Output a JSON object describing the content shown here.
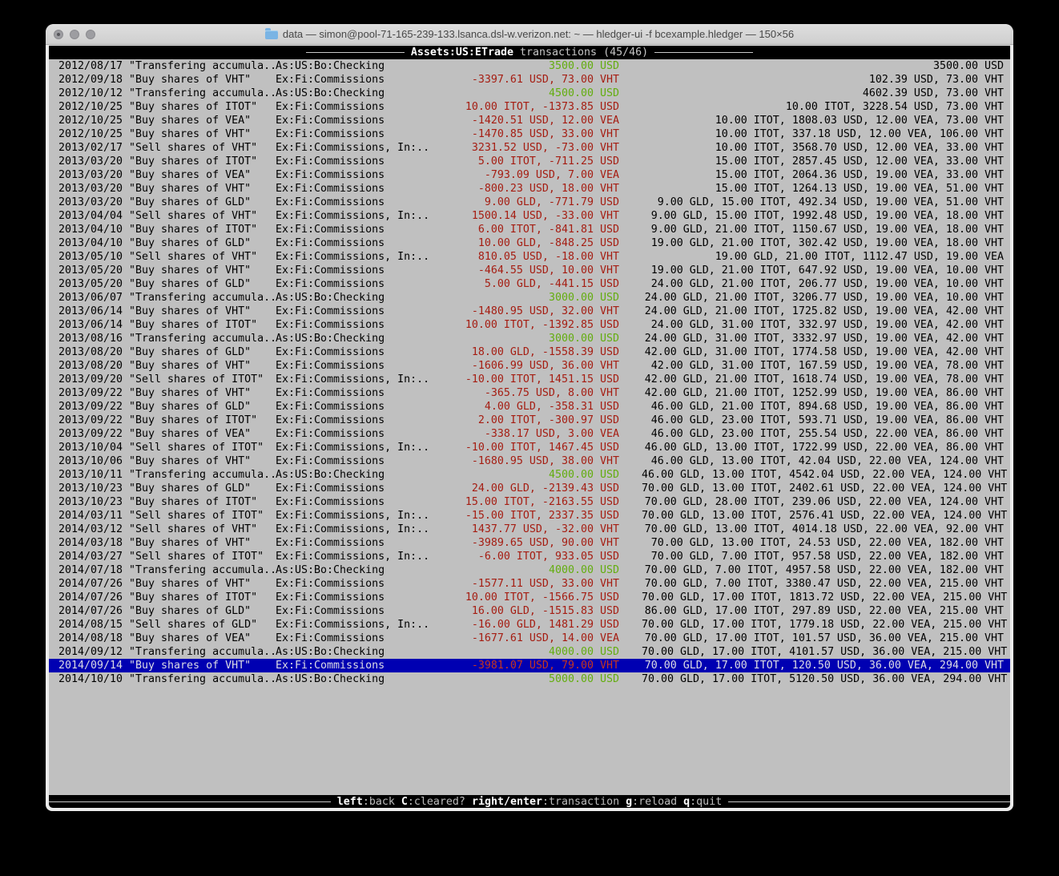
{
  "window": {
    "title": "data — simon@pool-71-165-239-133.lsanca.dsl-w.verizon.net: ~ — hledger-ui -f bcexample.hledger — 150×56"
  },
  "header": {
    "account": "Assets:US:ETrade",
    "mode_label": "transactions",
    "position": "(45/46)"
  },
  "footer": {
    "keys": [
      {
        "key": "left",
        "label": ":back"
      },
      {
        "key": "C",
        "label": ":cleared?"
      },
      {
        "key": "right/enter",
        "label": ":transaction"
      },
      {
        "key": "g",
        "label": ":reload"
      },
      {
        "key": "q",
        "label": ":quit"
      }
    ]
  },
  "colors": {
    "terminal_bg": "#c0c0c0",
    "bar_bg": "#000000",
    "negative_amount": "#a51d12",
    "positive_amount": "#63ad0f",
    "selection_bg": "#0000b2",
    "selection_text": "#dcdce4"
  },
  "transactions": [
    {
      "date": "2012/08/17",
      "description": "\"Transfering accumula..",
      "account": "As:US:Bo:Checking",
      "amount": "3500.00 USD",
      "amount_color": "green",
      "balance": "3500.00 USD",
      "selected": false
    },
    {
      "date": "2012/09/18",
      "description": "\"Buy shares of VHT\"",
      "account": "Ex:Fi:Commissions",
      "amount": "-3397.61 USD, 73.00 VHT",
      "amount_color": "red",
      "balance": "102.39 USD, 73.00 VHT",
      "selected": false
    },
    {
      "date": "2012/10/12",
      "description": "\"Transfering accumula..",
      "account": "As:US:Bo:Checking",
      "amount": "4500.00 USD",
      "amount_color": "green",
      "balance": "4602.39 USD, 73.00 VHT",
      "selected": false
    },
    {
      "date": "2012/10/25",
      "description": "\"Buy shares of ITOT\"",
      "account": "Ex:Fi:Commissions",
      "amount": "10.00 ITOT, -1373.85 USD",
      "amount_color": "red",
      "balance": "10.00 ITOT, 3228.54 USD, 73.00 VHT",
      "selected": false
    },
    {
      "date": "2012/10/25",
      "description": "\"Buy shares of VEA\"",
      "account": "Ex:Fi:Commissions",
      "amount": "-1420.51 USD, 12.00 VEA",
      "amount_color": "red",
      "balance": "10.00 ITOT, 1808.03 USD, 12.00 VEA, 73.00 VHT",
      "selected": false
    },
    {
      "date": "2012/10/25",
      "description": "\"Buy shares of VHT\"",
      "account": "Ex:Fi:Commissions",
      "amount": "-1470.85 USD, 33.00 VHT",
      "amount_color": "red",
      "balance": "10.00 ITOT, 337.18 USD, 12.00 VEA, 106.00 VHT",
      "selected": false
    },
    {
      "date": "2013/02/17",
      "description": "\"Sell shares of VHT\"",
      "account": "Ex:Fi:Commissions, In:..",
      "amount": "3231.52 USD, -73.00 VHT",
      "amount_color": "red",
      "balance": "10.00 ITOT, 3568.70 USD, 12.00 VEA, 33.00 VHT",
      "selected": false
    },
    {
      "date": "2013/03/20",
      "description": "\"Buy shares of ITOT\"",
      "account": "Ex:Fi:Commissions",
      "amount": "5.00 ITOT, -711.25 USD",
      "amount_color": "red",
      "balance": "15.00 ITOT, 2857.45 USD, 12.00 VEA, 33.00 VHT",
      "selected": false
    },
    {
      "date": "2013/03/20",
      "description": "\"Buy shares of VEA\"",
      "account": "Ex:Fi:Commissions",
      "amount": "-793.09 USD, 7.00 VEA",
      "amount_color": "red",
      "balance": "15.00 ITOT, 2064.36 USD, 19.00 VEA, 33.00 VHT",
      "selected": false
    },
    {
      "date": "2013/03/20",
      "description": "\"Buy shares of VHT\"",
      "account": "Ex:Fi:Commissions",
      "amount": "-800.23 USD, 18.00 VHT",
      "amount_color": "red",
      "balance": "15.00 ITOT, 1264.13 USD, 19.00 VEA, 51.00 VHT",
      "selected": false
    },
    {
      "date": "2013/03/20",
      "description": "\"Buy shares of GLD\"",
      "account": "Ex:Fi:Commissions",
      "amount": "9.00 GLD, -771.79 USD",
      "amount_color": "red",
      "balance": "9.00 GLD, 15.00 ITOT, 492.34 USD, 19.00 VEA, 51.00 VHT",
      "selected": false
    },
    {
      "date": "2013/04/04",
      "description": "\"Sell shares of VHT\"",
      "account": "Ex:Fi:Commissions, In:..",
      "amount": "1500.14 USD, -33.00 VHT",
      "amount_color": "red",
      "balance": "9.00 GLD, 15.00 ITOT, 1992.48 USD, 19.00 VEA, 18.00 VHT",
      "selected": false
    },
    {
      "date": "2013/04/10",
      "description": "\"Buy shares of ITOT\"",
      "account": "Ex:Fi:Commissions",
      "amount": "6.00 ITOT, -841.81 USD",
      "amount_color": "red",
      "balance": "9.00 GLD, 21.00 ITOT, 1150.67 USD, 19.00 VEA, 18.00 VHT",
      "selected": false
    },
    {
      "date": "2013/04/10",
      "description": "\"Buy shares of GLD\"",
      "account": "Ex:Fi:Commissions",
      "amount": "10.00 GLD, -848.25 USD",
      "amount_color": "red",
      "balance": "19.00 GLD, 21.00 ITOT, 302.42 USD, 19.00 VEA, 18.00 VHT",
      "selected": false
    },
    {
      "date": "2013/05/10",
      "description": "\"Sell shares of VHT\"",
      "account": "Ex:Fi:Commissions, In:..",
      "amount": "810.05 USD, -18.00 VHT",
      "amount_color": "red",
      "balance": "19.00 GLD, 21.00 ITOT, 1112.47 USD, 19.00 VEA",
      "selected": false
    },
    {
      "date": "2013/05/20",
      "description": "\"Buy shares of VHT\"",
      "account": "Ex:Fi:Commissions",
      "amount": "-464.55 USD, 10.00 VHT",
      "amount_color": "red",
      "balance": "19.00 GLD, 21.00 ITOT, 647.92 USD, 19.00 VEA, 10.00 VHT",
      "selected": false
    },
    {
      "date": "2013/05/20",
      "description": "\"Buy shares of GLD\"",
      "account": "Ex:Fi:Commissions",
      "amount": "5.00 GLD, -441.15 USD",
      "amount_color": "red",
      "balance": "24.00 GLD, 21.00 ITOT, 206.77 USD, 19.00 VEA, 10.00 VHT",
      "selected": false
    },
    {
      "date": "2013/06/07",
      "description": "\"Transfering accumula..",
      "account": "As:US:Bo:Checking",
      "amount": "3000.00 USD",
      "amount_color": "green",
      "balance": "24.00 GLD, 21.00 ITOT, 3206.77 USD, 19.00 VEA, 10.00 VHT",
      "selected": false
    },
    {
      "date": "2013/06/14",
      "description": "\"Buy shares of VHT\"",
      "account": "Ex:Fi:Commissions",
      "amount": "-1480.95 USD, 32.00 VHT",
      "amount_color": "red",
      "balance": "24.00 GLD, 21.00 ITOT, 1725.82 USD, 19.00 VEA, 42.00 VHT",
      "selected": false
    },
    {
      "date": "2013/06/14",
      "description": "\"Buy shares of ITOT\"",
      "account": "Ex:Fi:Commissions",
      "amount": "10.00 ITOT, -1392.85 USD",
      "amount_color": "red",
      "balance": "24.00 GLD, 31.00 ITOT, 332.97 USD, 19.00 VEA, 42.00 VHT",
      "selected": false
    },
    {
      "date": "2013/08/16",
      "description": "\"Transfering accumula..",
      "account": "As:US:Bo:Checking",
      "amount": "3000.00 USD",
      "amount_color": "green",
      "balance": "24.00 GLD, 31.00 ITOT, 3332.97 USD, 19.00 VEA, 42.00 VHT",
      "selected": false
    },
    {
      "date": "2013/08/20",
      "description": "\"Buy shares of GLD\"",
      "account": "Ex:Fi:Commissions",
      "amount": "18.00 GLD, -1558.39 USD",
      "amount_color": "red",
      "balance": "42.00 GLD, 31.00 ITOT, 1774.58 USD, 19.00 VEA, 42.00 VHT",
      "selected": false
    },
    {
      "date": "2013/08/20",
      "description": "\"Buy shares of VHT\"",
      "account": "Ex:Fi:Commissions",
      "amount": "-1606.99 USD, 36.00 VHT",
      "amount_color": "red",
      "balance": "42.00 GLD, 31.00 ITOT, 167.59 USD, 19.00 VEA, 78.00 VHT",
      "selected": false
    },
    {
      "date": "2013/09/20",
      "description": "\"Sell shares of ITOT\"",
      "account": "Ex:Fi:Commissions, In:..",
      "amount": "-10.00 ITOT, 1451.15 USD",
      "amount_color": "red",
      "balance": "42.00 GLD, 21.00 ITOT, 1618.74 USD, 19.00 VEA, 78.00 VHT",
      "selected": false
    },
    {
      "date": "2013/09/22",
      "description": "\"Buy shares of VHT\"",
      "account": "Ex:Fi:Commissions",
      "amount": "-365.75 USD, 8.00 VHT",
      "amount_color": "red",
      "balance": "42.00 GLD, 21.00 ITOT, 1252.99 USD, 19.00 VEA, 86.00 VHT",
      "selected": false
    },
    {
      "date": "2013/09/22",
      "description": "\"Buy shares of GLD\"",
      "account": "Ex:Fi:Commissions",
      "amount": "4.00 GLD, -358.31 USD",
      "amount_color": "red",
      "balance": "46.00 GLD, 21.00 ITOT, 894.68 USD, 19.00 VEA, 86.00 VHT",
      "selected": false
    },
    {
      "date": "2013/09/22",
      "description": "\"Buy shares of ITOT\"",
      "account": "Ex:Fi:Commissions",
      "amount": "2.00 ITOT, -300.97 USD",
      "amount_color": "red",
      "balance": "46.00 GLD, 23.00 ITOT, 593.71 USD, 19.00 VEA, 86.00 VHT",
      "selected": false
    },
    {
      "date": "2013/09/22",
      "description": "\"Buy shares of VEA\"",
      "account": "Ex:Fi:Commissions",
      "amount": "-338.17 USD, 3.00 VEA",
      "amount_color": "red",
      "balance": "46.00 GLD, 23.00 ITOT, 255.54 USD, 22.00 VEA, 86.00 VHT",
      "selected": false
    },
    {
      "date": "2013/10/04",
      "description": "\"Sell shares of ITOT\"",
      "account": "Ex:Fi:Commissions, In:..",
      "amount": "-10.00 ITOT, 1467.45 USD",
      "amount_color": "red",
      "balance": "46.00 GLD, 13.00 ITOT, 1722.99 USD, 22.00 VEA, 86.00 VHT",
      "selected": false
    },
    {
      "date": "2013/10/06",
      "description": "\"Buy shares of VHT\"",
      "account": "Ex:Fi:Commissions",
      "amount": "-1680.95 USD, 38.00 VHT",
      "amount_color": "red",
      "balance": "46.00 GLD, 13.00 ITOT, 42.04 USD, 22.00 VEA, 124.00 VHT",
      "selected": false
    },
    {
      "date": "2013/10/11",
      "description": "\"Transfering accumula..",
      "account": "As:US:Bo:Checking",
      "amount": "4500.00 USD",
      "amount_color": "green",
      "balance": "46.00 GLD, 13.00 ITOT, 4542.04 USD, 22.00 VEA, 124.00 VHT",
      "selected": false
    },
    {
      "date": "2013/10/23",
      "description": "\"Buy shares of GLD\"",
      "account": "Ex:Fi:Commissions",
      "amount": "24.00 GLD, -2139.43 USD",
      "amount_color": "red",
      "balance": "70.00 GLD, 13.00 ITOT, 2402.61 USD, 22.00 VEA, 124.00 VHT",
      "selected": false
    },
    {
      "date": "2013/10/23",
      "description": "\"Buy shares of ITOT\"",
      "account": "Ex:Fi:Commissions",
      "amount": "15.00 ITOT, -2163.55 USD",
      "amount_color": "red",
      "balance": "70.00 GLD, 28.00 ITOT, 239.06 USD, 22.00 VEA, 124.00 VHT",
      "selected": false
    },
    {
      "date": "2014/03/11",
      "description": "\"Sell shares of ITOT\"",
      "account": "Ex:Fi:Commissions, In:..",
      "amount": "-15.00 ITOT, 2337.35 USD",
      "amount_color": "red",
      "balance": "70.00 GLD, 13.00 ITOT, 2576.41 USD, 22.00 VEA, 124.00 VHT",
      "selected": false
    },
    {
      "date": "2014/03/12",
      "description": "\"Sell shares of VHT\"",
      "account": "Ex:Fi:Commissions, In:..",
      "amount": "1437.77 USD, -32.00 VHT",
      "amount_color": "red",
      "balance": "70.00 GLD, 13.00 ITOT, 4014.18 USD, 22.00 VEA, 92.00 VHT",
      "selected": false
    },
    {
      "date": "2014/03/18",
      "description": "\"Buy shares of VHT\"",
      "account": "Ex:Fi:Commissions",
      "amount": "-3989.65 USD, 90.00 VHT",
      "amount_color": "red",
      "balance": "70.00 GLD, 13.00 ITOT, 24.53 USD, 22.00 VEA, 182.00 VHT",
      "selected": false
    },
    {
      "date": "2014/03/27",
      "description": "\"Sell shares of ITOT\"",
      "account": "Ex:Fi:Commissions, In:..",
      "amount": "-6.00 ITOT, 933.05 USD",
      "amount_color": "red",
      "balance": "70.00 GLD, 7.00 ITOT, 957.58 USD, 22.00 VEA, 182.00 VHT",
      "selected": false
    },
    {
      "date": "2014/07/18",
      "description": "\"Transfering accumula..",
      "account": "As:US:Bo:Checking",
      "amount": "4000.00 USD",
      "amount_color": "green",
      "balance": "70.00 GLD, 7.00 ITOT, 4957.58 USD, 22.00 VEA, 182.00 VHT",
      "selected": false
    },
    {
      "date": "2014/07/26",
      "description": "\"Buy shares of VHT\"",
      "account": "Ex:Fi:Commissions",
      "amount": "-1577.11 USD, 33.00 VHT",
      "amount_color": "red",
      "balance": "70.00 GLD, 7.00 ITOT, 3380.47 USD, 22.00 VEA, 215.00 VHT",
      "selected": false
    },
    {
      "date": "2014/07/26",
      "description": "\"Buy shares of ITOT\"",
      "account": "Ex:Fi:Commissions",
      "amount": "10.00 ITOT, -1566.75 USD",
      "amount_color": "red",
      "balance": "70.00 GLD, 17.00 ITOT, 1813.72 USD, 22.00 VEA, 215.00 VHT",
      "selected": false
    },
    {
      "date": "2014/07/26",
      "description": "\"Buy shares of GLD\"",
      "account": "Ex:Fi:Commissions",
      "amount": "16.00 GLD, -1515.83 USD",
      "amount_color": "red",
      "balance": "86.00 GLD, 17.00 ITOT, 297.89 USD, 22.00 VEA, 215.00 VHT",
      "selected": false
    },
    {
      "date": "2014/08/15",
      "description": "\"Sell shares of GLD\"",
      "account": "Ex:Fi:Commissions, In:..",
      "amount": "-16.00 GLD, 1481.29 USD",
      "amount_color": "red",
      "balance": "70.00 GLD, 17.00 ITOT, 1779.18 USD, 22.00 VEA, 215.00 VHT",
      "selected": false
    },
    {
      "date": "2014/08/18",
      "description": "\"Buy shares of VEA\"",
      "account": "Ex:Fi:Commissions",
      "amount": "-1677.61 USD, 14.00 VEA",
      "amount_color": "red",
      "balance": "70.00 GLD, 17.00 ITOT, 101.57 USD, 36.00 VEA, 215.00 VHT",
      "selected": false
    },
    {
      "date": "2014/09/12",
      "description": "\"Transfering accumula..",
      "account": "As:US:Bo:Checking",
      "amount": "4000.00 USD",
      "amount_color": "green",
      "balance": "70.00 GLD, 17.00 ITOT, 4101.57 USD, 36.00 VEA, 215.00 VHT",
      "selected": false
    },
    {
      "date": "2014/09/14",
      "description": "\"Buy shares of VHT\"",
      "account": "Ex:Fi:Commissions",
      "amount": "-3981.07 USD, 79.00 VHT",
      "amount_color": "red",
      "balance": "70.00 GLD, 17.00 ITOT, 120.50 USD, 36.00 VEA, 294.00 VHT",
      "selected": true
    },
    {
      "date": "2014/10/10",
      "description": "\"Transfering accumula..",
      "account": "As:US:Bo:Checking",
      "amount": "5000.00 USD",
      "amount_color": "green",
      "balance": "70.00 GLD, 17.00 ITOT, 5120.50 USD, 36.00 VEA, 294.00 VHT",
      "selected": false
    }
  ]
}
